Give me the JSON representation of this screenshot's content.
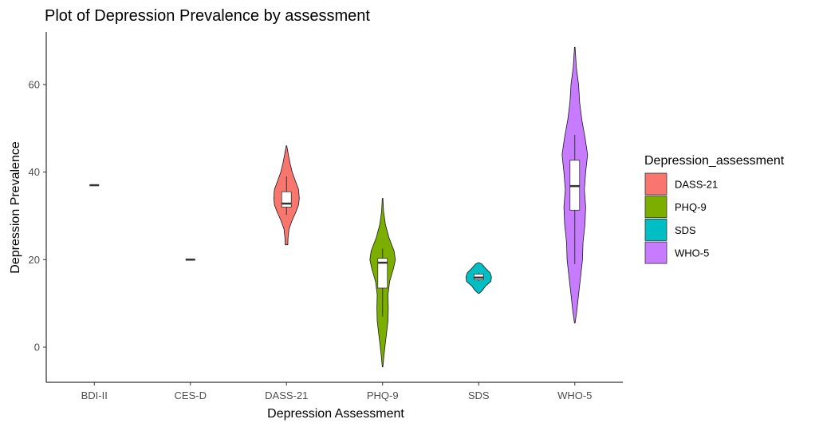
{
  "chart_data": {
    "type": "violin",
    "title": "Plot of Depression Prevalence by assessment",
    "xlabel": "Depression Assessment",
    "ylabel": "Depression Prevalence",
    "ylim": [
      -8,
      70
    ],
    "yticks": [
      0,
      20,
      40,
      60
    ],
    "grid": false,
    "legend": {
      "title": "Depression_assessment",
      "position": "right"
    },
    "categories": [
      "BDI-II",
      "CES-D",
      "DASS-21",
      "PHQ-9",
      "SDS",
      "WHO-5"
    ],
    "groups": [
      {
        "name": "BDI-II",
        "color": "",
        "single_value": 37
      },
      {
        "name": "CES-D",
        "color": "",
        "single_value": 20
      },
      {
        "name": "DASS-21",
        "color": "#F8766D",
        "box": {
          "q1": 32,
          "median": 32.8,
          "q3": 35.5,
          "whisker_low": 30.2,
          "whisker_high": 39
        },
        "violin": [
          [
            23.4,
            0.1
          ],
          [
            25,
            0.12
          ],
          [
            27,
            0.2
          ],
          [
            29,
            0.45
          ],
          [
            31,
            0.75
          ],
          [
            32.5,
            0.95
          ],
          [
            34,
            1.0
          ],
          [
            36,
            0.95
          ],
          [
            38,
            0.7
          ],
          [
            40,
            0.45
          ],
          [
            42,
            0.28
          ],
          [
            44,
            0.15
          ],
          [
            46,
            0.02
          ]
        ]
      },
      {
        "name": "PHQ-9",
        "color": "#7CAE00",
        "box": {
          "q1": 13.5,
          "median": 19.3,
          "q3": 20.3,
          "whisker_low": 7,
          "whisker_high": 22.5
        },
        "violin": [
          [
            -4.5,
            0.02
          ],
          [
            -2,
            0.1
          ],
          [
            0,
            0.18
          ],
          [
            3,
            0.3
          ],
          [
            6,
            0.42
          ],
          [
            9,
            0.45
          ],
          [
            12,
            0.42
          ],
          [
            15,
            0.55
          ],
          [
            18,
            0.85
          ],
          [
            20,
            1.0
          ],
          [
            22,
            0.9
          ],
          [
            25,
            0.5
          ],
          [
            28,
            0.22
          ],
          [
            31,
            0.08
          ],
          [
            34,
            0.02
          ]
        ]
      },
      {
        "name": "SDS",
        "color": "#00BFC4",
        "box": {
          "q1": 15.4,
          "median": 15.9,
          "q3": 16.7,
          "whisker_low": 15.1,
          "whisker_high": 17
        },
        "violin": [
          [
            12.3,
            0.05
          ],
          [
            13,
            0.3
          ],
          [
            14,
            0.55
          ],
          [
            15,
            0.95
          ],
          [
            16,
            1.0
          ],
          [
            17,
            0.9
          ],
          [
            18,
            0.55
          ],
          [
            19,
            0.25
          ],
          [
            19.3,
            0.05
          ]
        ]
      },
      {
        "name": "WHO-5",
        "color": "#C77CFF",
        "box": {
          "q1": 31.3,
          "median": 36.8,
          "q3": 42.7,
          "whisker_low": 19,
          "whisker_high": 48.5
        },
        "violin": [
          [
            5.5,
            0.02
          ],
          [
            8,
            0.15
          ],
          [
            12,
            0.3
          ],
          [
            16,
            0.45
          ],
          [
            20,
            0.6
          ],
          [
            24,
            0.65
          ],
          [
            28,
            0.8
          ],
          [
            32,
            0.85
          ],
          [
            36,
            0.75
          ],
          [
            40,
            0.85
          ],
          [
            44,
            1.0
          ],
          [
            48,
            0.8
          ],
          [
            52,
            0.55
          ],
          [
            56,
            0.38
          ],
          [
            60,
            0.3
          ],
          [
            64,
            0.12
          ],
          [
            68.5,
            0.02
          ]
        ]
      }
    ]
  }
}
